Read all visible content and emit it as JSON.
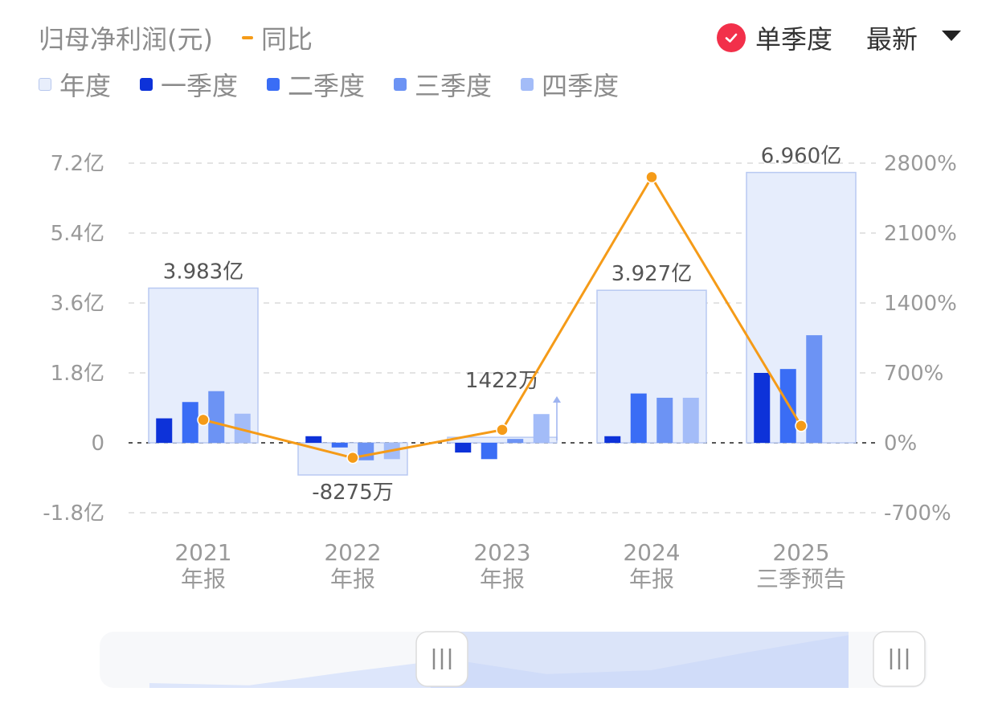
{
  "header": {
    "title": "归母净利润(元)",
    "yoy_label": "同比",
    "yoy_color": "#f59b18"
  },
  "legend": [
    {
      "label": "年度",
      "color": "#e8eefb"
    },
    {
      "label": "一季度",
      "color": "#0d32d9"
    },
    {
      "label": "二季度",
      "color": "#3a6df5"
    },
    {
      "label": "三季度",
      "color": "#6c93f4"
    },
    {
      "label": "四季度",
      "color": "#a3bcf8"
    }
  ],
  "controls": {
    "single_quarter_label": "单季度",
    "single_quarter_checked": true,
    "check_color": "#f2304a",
    "period_select": "最新",
    "icons": [
      "check-icon",
      "caret-down-icon",
      "grip-icon"
    ]
  },
  "chart_data": {
    "type": "bar",
    "categories": [
      {
        "year": "2021",
        "label": "年报"
      },
      {
        "year": "2022",
        "label": "年报"
      },
      {
        "year": "2023",
        "label": "年报"
      },
      {
        "year": "2024",
        "label": "年报"
      },
      {
        "year": "2025",
        "label": "三季预告"
      }
    ],
    "annual": {
      "name": "年度",
      "values": [
        3.983,
        -0.8275,
        0.1422,
        3.927,
        6.96
      ],
      "unit": "亿"
    },
    "quarters": [
      {
        "name": "一季度",
        "values": [
          0.63,
          0.17,
          -0.25,
          0.17,
          1.8
        ]
      },
      {
        "name": "二季度",
        "values": [
          1.05,
          -0.12,
          -0.42,
          1.27,
          1.9
        ]
      },
      {
        "name": "三季度",
        "values": [
          1.33,
          -0.45,
          0.1,
          1.16,
          2.77
        ]
      },
      {
        "name": "四季度",
        "values": [
          0.75,
          -0.42,
          0.74,
          1.16,
          null
        ]
      }
    ],
    "yoy": {
      "name": "同比",
      "values": [
        230,
        -150,
        130,
        2660,
        170
      ],
      "unit": "%"
    },
    "data_labels": [
      "3.983亿",
      "-8275万",
      "1422万",
      "3.927亿",
      "6.960亿"
    ],
    "y_left": {
      "ticks": [
        "7.2亿",
        "5.4亿",
        "3.6亿",
        "1.8亿",
        "0",
        "-1.8亿"
      ],
      "range": [
        -1.8,
        7.2
      ],
      "unit": "亿"
    },
    "y_right": {
      "ticks": [
        "2800%",
        "2100%",
        "1400%",
        "700%",
        "0%",
        "-700%"
      ],
      "range": [
        -700,
        2800
      ]
    },
    "grid": true,
    "legend_position": "top-left"
  },
  "range_slider": {
    "start": 0.4,
    "end": 1.0
  }
}
